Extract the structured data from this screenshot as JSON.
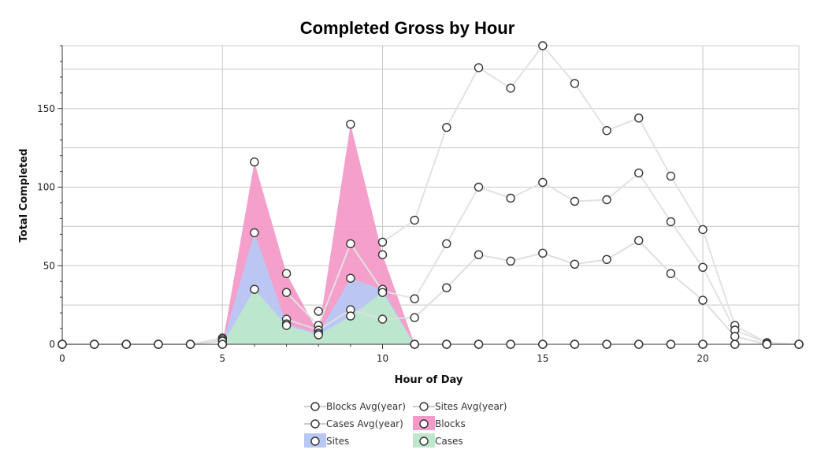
{
  "chart_data": {
    "type": "area",
    "title": "Completed Gross by Hour",
    "xlabel": "Hour of Day",
    "ylabel": "Total Completed",
    "xlim": [
      0,
      23
    ],
    "ylim": [
      0,
      190
    ],
    "x_ticks": [
      0,
      5,
      10,
      15,
      20
    ],
    "y_ticks": [
      0,
      50,
      100,
      150
    ],
    "grid": true,
    "legend_position": "bottom",
    "x": [
      0,
      1,
      2,
      3,
      4,
      5,
      6,
      7,
      8,
      9,
      10,
      11,
      12,
      13,
      14,
      15,
      16,
      17,
      18,
      19,
      20,
      21,
      22,
      23
    ],
    "series": [
      {
        "name": "Blocks Avg(year)",
        "kind": "line",
        "color": "#e2e2e2",
        "values": [
          0,
          0,
          0,
          0,
          0,
          4,
          null,
          null,
          21,
          null,
          65,
          79,
          138,
          176,
          163,
          190,
          166,
          136,
          144,
          107,
          73,
          12,
          1,
          0
        ]
      },
      {
        "name": "Sites Avg(year)",
        "kind": "line",
        "color": "#e2e2e2",
        "values": [
          0,
          0,
          0,
          0,
          0,
          3,
          null,
          33,
          12,
          64,
          34,
          29,
          64,
          100,
          93,
          103,
          91,
          92,
          109,
          78,
          49,
          9,
          1,
          0
        ]
      },
      {
        "name": "Cases Avg(year)",
        "kind": "line",
        "color": "#dedede",
        "values": [
          0,
          0,
          0,
          0,
          0,
          2,
          null,
          16,
          9,
          22,
          16,
          17,
          36,
          57,
          53,
          58,
          51,
          54,
          66,
          45,
          28,
          5,
          0,
          0
        ]
      },
      {
        "name": "Blocks",
        "kind": "area",
        "color": "#f49ac8",
        "values": [
          0,
          0,
          0,
          0,
          0,
          0,
          116,
          45,
          7,
          140,
          57,
          0,
          0,
          0,
          0,
          0,
          0,
          0,
          0,
          0,
          0,
          0,
          0,
          0
        ]
      },
      {
        "name": "Sites",
        "kind": "area",
        "color": "#b8c8f4",
        "values": [
          0,
          0,
          0,
          0,
          0,
          0,
          71,
          13,
          7,
          42,
          35,
          0,
          0,
          0,
          0,
          0,
          0,
          0,
          0,
          0,
          0,
          0,
          0,
          0
        ]
      },
      {
        "name": "Cases",
        "kind": "area",
        "color": "#bde8cc",
        "values": [
          0,
          0,
          0,
          0,
          0,
          0,
          35,
          12,
          6,
          18,
          33,
          0,
          0,
          0,
          0,
          0,
          0,
          0,
          0,
          0,
          0,
          0,
          0,
          0
        ]
      }
    ]
  }
}
